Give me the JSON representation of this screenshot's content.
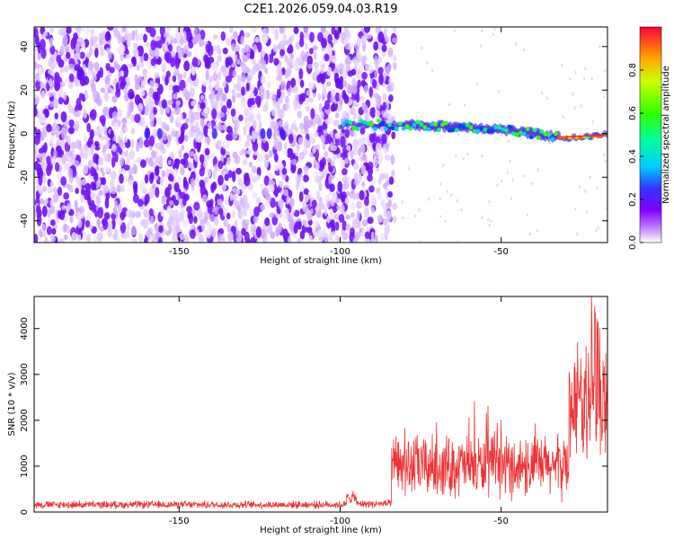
{
  "title": "C2E1.2026.059.04.03.R19",
  "chart_data": [
    {
      "type": "heatmap",
      "title": "C2E1.2026.059.04.03.R19",
      "xlabel": "Height of straight line (km)",
      "ylabel": "Frequency (Hz)",
      "xlim": [
        -195,
        -17
      ],
      "ylim": [
        -50,
        49
      ],
      "xticks": [
        -150,
        -100,
        -50
      ],
      "yticks": [
        -40,
        -20,
        0,
        20,
        40
      ],
      "colorbar": {
        "label": "Normalized spectral amplitude",
        "range": [
          0,
          1
        ],
        "ticks": [
          0.0,
          0.2,
          0.4,
          0.6,
          0.8
        ]
      },
      "features": {
        "noise_region": [
          -195,
          -83
        ],
        "signal_track": [
          {
            "x": -100,
            "f": 4
          },
          {
            "x": -80,
            "f": 4
          },
          {
            "x": -60,
            "f": 3
          },
          {
            "x": -50,
            "f": 2
          },
          {
            "x": -40,
            "f": 0
          },
          {
            "x": -30,
            "f": -2
          },
          {
            "x": -20,
            "f": -1
          },
          {
            "x": -17,
            "f": 0
          }
        ]
      }
    },
    {
      "type": "line",
      "xlabel": "Height of straight line (km)",
      "ylabel": "SNR (10 * v/v)",
      "xlim": [
        -195,
        -17
      ],
      "ylim": [
        0,
        4700
      ],
      "xticks": [
        -150,
        -100,
        -50
      ],
      "yticks": [
        0,
        1000,
        2000,
        3000,
        4000
      ],
      "color": "#ee3333",
      "segments": [
        {
          "from": -195,
          "to": -98,
          "mean": 160,
          "spread": 100
        },
        {
          "from": -98,
          "to": -95,
          "mean": 320,
          "spread": 150
        },
        {
          "from": -95,
          "to": -84,
          "mean": 180,
          "spread": 100
        },
        {
          "from": -84,
          "to": -29,
          "mean": 1000,
          "spread": 800
        },
        {
          "from": -29,
          "to": -17,
          "mean": 2400,
          "spread": 1400
        }
      ]
    }
  ]
}
